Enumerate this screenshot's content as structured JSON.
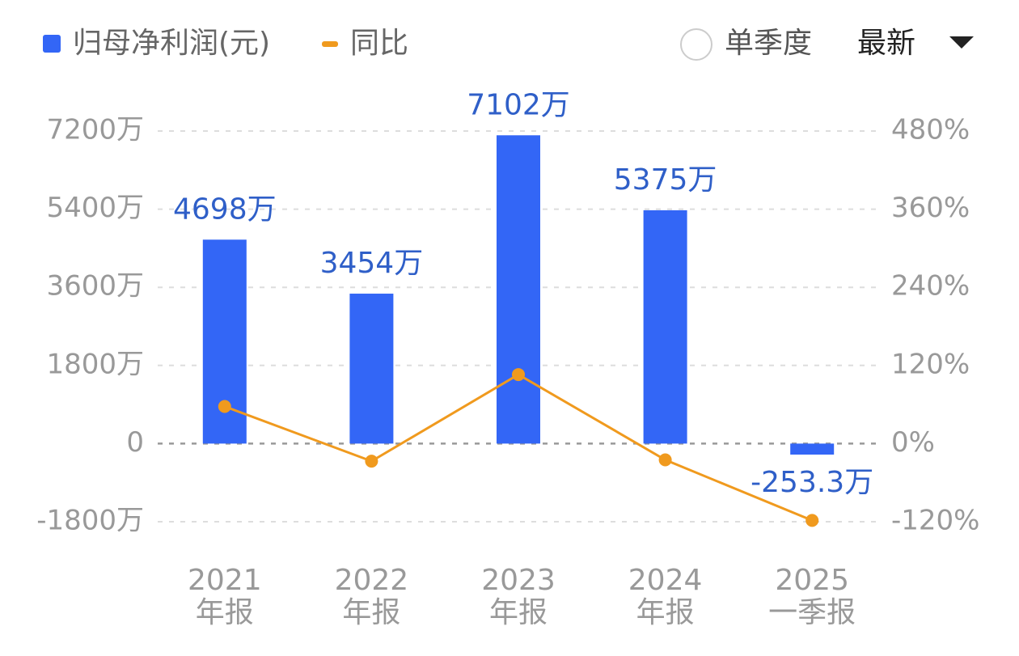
{
  "chart_data": {
    "type": "bar_line",
    "legend": {
      "bar": "归母净利润(元)",
      "line": "同比"
    },
    "controls": {
      "toggle": "单季度",
      "dropdown": "最新"
    },
    "categories": [
      "2021\n年报",
      "2022\n年报",
      "2023\n年报",
      "2024\n年报",
      "2025\n一季报"
    ],
    "series": [
      {
        "name": "归母净利润(元)",
        "type": "bar",
        "color": "#3366f6",
        "values": [
          4698,
          3454,
          7102,
          5375,
          -253.3
        ],
        "value_labels": [
          "4698万",
          "3454万",
          "7102万",
          "5375万",
          "-253.3万"
        ],
        "value_label_color": "#2f5fc8"
      },
      {
        "name": "同比",
        "type": "line",
        "axis": "y2",
        "color": "#f09a1e",
        "values": [
          57,
          -27,
          106,
          -25,
          -118
        ]
      }
    ],
    "ylim": [
      -1800,
      7200
    ],
    "yticks": [
      {
        "value": -1800,
        "label": "-1800万"
      },
      0,
      {
        "value": 1800,
        "label": "1800万"
      },
      {
        "value": 3600,
        "label": "3600万"
      },
      {
        "value": 5400,
        "label": "5400万"
      },
      {
        "value": 7200,
        "label": "7200万"
      }
    ],
    "y2lim": [
      -120,
      480
    ],
    "y2ticks": [
      {
        "value": -120,
        "label": "-120%"
      },
      {
        "value": 0,
        "label": "0%"
      },
      {
        "value": 120,
        "label": "120%"
      },
      {
        "value": 240,
        "label": "240%"
      },
      {
        "value": 360,
        "label": "360%"
      },
      {
        "value": 480,
        "label": "480%"
      }
    ],
    "grid": true
  }
}
